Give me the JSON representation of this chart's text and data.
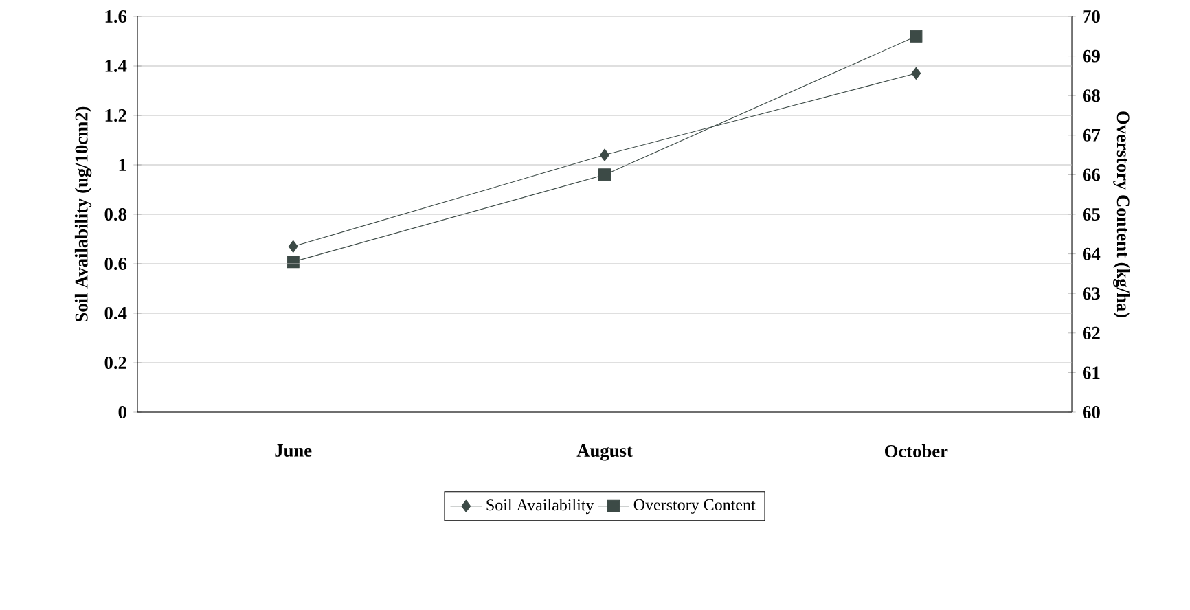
{
  "chart_data": {
    "type": "line",
    "categories": [
      "June",
      "August",
      "October"
    ],
    "ylabel": "Soil Availability (ug/10cm2)",
    "y2label": "Overstory Content (kg/ha)",
    "ylim": [
      0,
      1.6
    ],
    "yticks": [
      0,
      0.2,
      0.4,
      0.6,
      0.8,
      1,
      1.2,
      1.4,
      1.6
    ],
    "y2lim": [
      60,
      70
    ],
    "y2ticks": [
      60,
      61,
      62,
      63,
      64,
      65,
      66,
      67,
      68,
      69,
      70
    ],
    "grid": "y",
    "legend": "bottom",
    "line_style": "solid",
    "series": [
      {
        "name": "Soil Availability",
        "color": "#3c4a46",
        "marker": "diamond",
        "values": [
          0.67,
          1.04,
          1.37
        ]
      },
      {
        "name": "Overstory Content",
        "color": "#3c4a46",
        "marker": "square",
        "axis": "y2",
        "values": [
          63.8,
          66.0,
          69.5
        ]
      }
    ]
  }
}
